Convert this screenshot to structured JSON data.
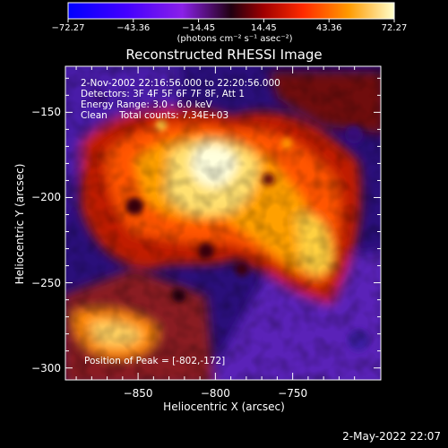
{
  "chart_data": {
    "type": "heatmap",
    "title": "Reconstructed RHESSI Image",
    "xlabel": "Heliocentric X (arcsec)",
    "ylabel": "Heliocentric Y (arcsec)",
    "xlim": [
      -897,
      -693
    ],
    "ylim": [
      -307,
      -123
    ],
    "x_ticks": [
      "-850",
      "-800",
      "-750"
    ],
    "x_tick_values": [
      -850,
      -800,
      -750
    ],
    "y_ticks": [
      "-150",
      "-200",
      "-250",
      "-300"
    ],
    "y_tick_values": [
      -150,
      -200,
      -250,
      -300
    ],
    "colorbar": {
      "range": [
        -72.27,
        72.27
      ],
      "tick_labels": [
        "-72.27",
        "-43.36",
        "-14.45",
        "14.45",
        "43.36",
        "72.27"
      ],
      "unit": "(photons cm⁻² s⁻¹ asec⁻²)"
    },
    "annotations": {
      "time": "2-Nov-2002 22:16:56.000 to 22:20:56.000",
      "detectors": "Detectors: 3F 4F 5F 6F 7F 8F, Att 1",
      "energy": "Energy Range: 3.0 - 6.0 keV",
      "clean": "Clean    Total counts: 7.34E+03",
      "peak": "Position of Peak = [-802,-172]"
    },
    "peak": [
      -802,
      -172
    ]
  },
  "footer": {
    "timestamp": "2-May-2022 22:07"
  }
}
